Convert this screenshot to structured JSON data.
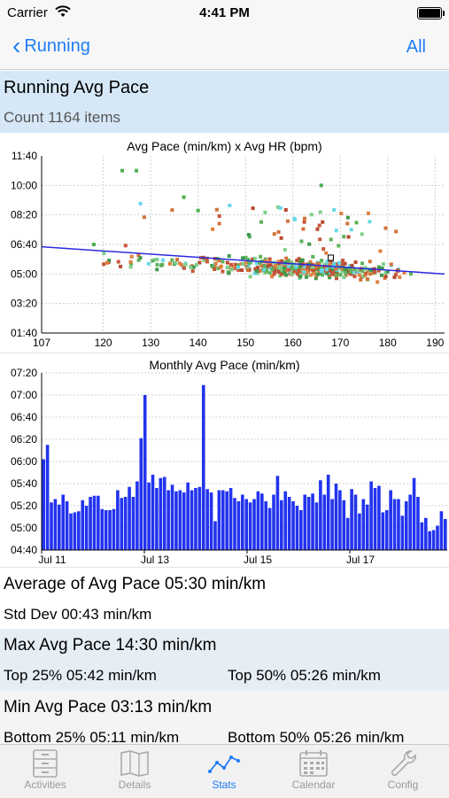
{
  "status": {
    "carrier": "Carrier",
    "time": "4:41 PM"
  },
  "nav": {
    "back_label": "Running",
    "right_label": "All"
  },
  "header": {
    "title": "Running Avg Pace",
    "count": "Count 1164 items"
  },
  "scatter": {
    "title": "Avg Pace (min/km) x Avg HR (bpm)",
    "y_ticks": [
      "11:40",
      "10:00",
      "08:20",
      "06:40",
      "05:00",
      "03:20",
      "01:40"
    ],
    "x_ticks": [
      "107",
      "120",
      "130",
      "140",
      "150",
      "160",
      "170",
      "180",
      "190"
    ]
  },
  "bars": {
    "title": "Monthly Avg Pace (min/km)",
    "y_ticks": [
      "07:20",
      "07:00",
      "06:40",
      "06:20",
      "06:00",
      "05:40",
      "05:20",
      "05:00",
      "04:40"
    ],
    "x_ticks": [
      "Jul 11",
      "Jul 13",
      "Jul 15",
      "Jul 17"
    ]
  },
  "stats": {
    "average": "Average of Avg Pace 05:30 min/km",
    "stddev": "Std Dev 00:43 min/km",
    "max": "Max Avg Pace 14:30 min/km",
    "top25": "Top 25% 05:42 min/km",
    "top50": "Top 50% 05:26 min/km",
    "min": "Min Avg Pace 03:13 min/km",
    "bottom25": "Bottom 25% 05:11 min/km",
    "bottom50": "Bottom 50% 05:26 min/km"
  },
  "tabs": [
    {
      "label": "Activities",
      "icon": "cabinet-icon"
    },
    {
      "label": "Details",
      "icon": "map-icon"
    },
    {
      "label": "Stats",
      "icon": "graph-icon"
    },
    {
      "label": "Calendar",
      "icon": "calendar-icon"
    },
    {
      "label": "Config",
      "icon": "wrench-icon"
    }
  ],
  "colors": {
    "accent": "#1e7cf7",
    "bar": "#2233ee",
    "trend": "#2a2ae0"
  },
  "chart_data": [
    {
      "type": "scatter",
      "title": "Avg Pace (min/km) x Avg HR (bpm)",
      "xlabel": "",
      "ylabel": "",
      "xlim": [
        107,
        192
      ],
      "ylim": [
        100,
        700
      ],
      "trendline": [
        [
          107,
          392
        ],
        [
          192,
          300
        ]
      ]
    },
    {
      "type": "bar",
      "title": "Monthly Avg Pace (min/km)",
      "ylim": [
        280,
        440
      ],
      "values": [
        362,
        375,
        323,
        326,
        321,
        330,
        324,
        313,
        314,
        315,
        325,
        320,
        328,
        329,
        329,
        317,
        316,
        316,
        317,
        334,
        327,
        328,
        337,
        328,
        342,
        381,
        420,
        341,
        348,
        336,
        345,
        346,
        334,
        339,
        333,
        334,
        332,
        341,
        334,
        336,
        337,
        429,
        335,
        332,
        306,
        334,
        334,
        333,
        336,
        327,
        324,
        330,
        326,
        323,
        326,
        333,
        331,
        324,
        318,
        330,
        347,
        325,
        333,
        328,
        324,
        320,
        316,
        330,
        328,
        331,
        323,
        343,
        330,
        348,
        326,
        340,
        334,
        325,
        309,
        335,
        330,
        313,
        326,
        321,
        342,
        336,
        338,
        314,
        316,
        334,
        326,
        326,
        311,
        324,
        330,
        345,
        328,
        305,
        309,
        297,
        298,
        302,
        315,
        308
      ]
    }
  ]
}
